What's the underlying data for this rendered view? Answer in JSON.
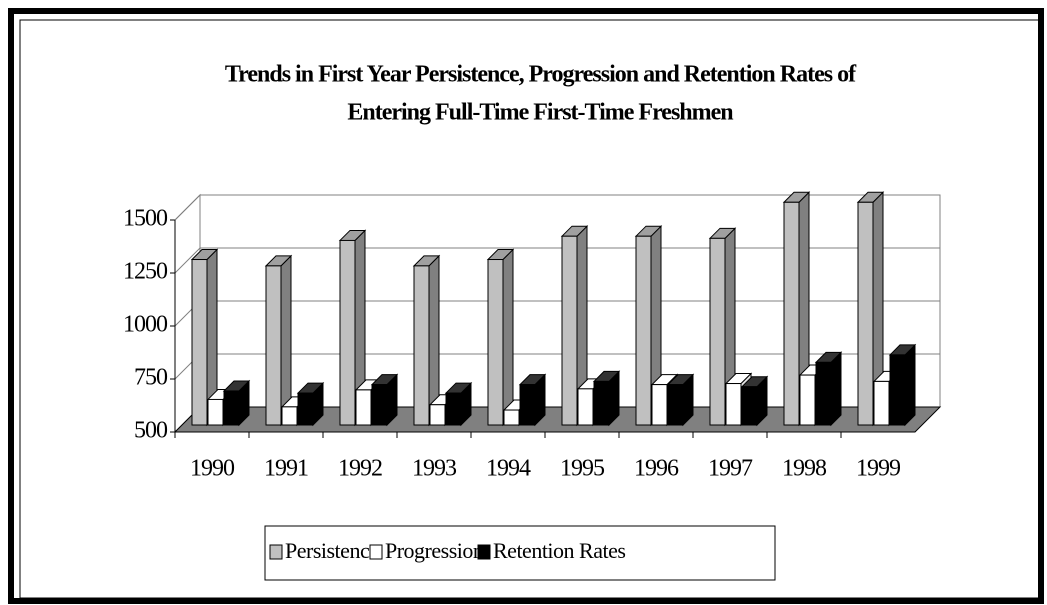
{
  "chart_data": {
    "type": "bar3d",
    "title": [
      "Trends in First Year Persistence, Progression and Retention Rates of",
      "Entering Full-Time First-Time Freshmen"
    ],
    "categories": [
      "1990",
      "1991",
      "1992",
      "1993",
      "1994",
      "1995",
      "1996",
      "1997",
      "1998",
      "1999"
    ],
    "series": [
      {
        "name": "Persistence",
        "color": "#c0c0c0",
        "values": [
          1290,
          1260,
          1380,
          1260,
          1290,
          1400,
          1400,
          1390,
          1560,
          1560
        ]
      },
      {
        "name": "Progression",
        "color": "#ffffff",
        "values": [
          630,
          595,
          675,
          605,
          580,
          680,
          700,
          705,
          745,
          715
        ]
      },
      {
        "name": "Retention Rates",
        "color": "#000000",
        "values": [
          670,
          660,
          700,
          660,
          700,
          715,
          700,
          690,
          805,
          840
        ]
      }
    ],
    "ylim": [
      500,
      1500
    ],
    "yticks": [
      500,
      750,
      1000,
      1250,
      1500
    ],
    "grid": true,
    "legend": "bottom"
  }
}
